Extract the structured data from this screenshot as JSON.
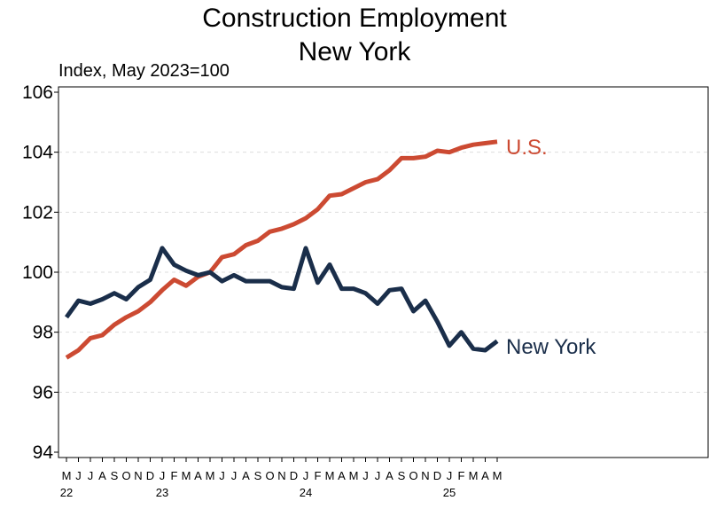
{
  "chart_data": {
    "type": "line",
    "title": "Construction Employment",
    "subtitle": "New York",
    "ylabel": "Index, May 2023=100",
    "ylim": [
      94,
      106
    ],
    "yticks": [
      94,
      96,
      98,
      100,
      102,
      104,
      106
    ],
    "grid": true,
    "x": [
      "2022-05",
      "2022-06",
      "2022-07",
      "2022-08",
      "2022-09",
      "2022-10",
      "2022-11",
      "2022-12",
      "2023-01",
      "2023-02",
      "2023-03",
      "2023-04",
      "2023-05",
      "2023-06",
      "2023-07",
      "2023-08",
      "2023-09",
      "2023-10",
      "2023-11",
      "2023-12",
      "2024-01",
      "2024-02",
      "2024-03",
      "2024-04",
      "2024-05",
      "2024-06",
      "2024-07",
      "2024-08",
      "2024-09",
      "2024-10",
      "2024-11",
      "2024-12",
      "2025-01",
      "2025-02",
      "2025-03",
      "2025-04",
      "2025-05"
    ],
    "month_labels": [
      "M",
      "J",
      "J",
      "A",
      "S",
      "O",
      "N",
      "D",
      "J",
      "F",
      "M",
      "A",
      "M",
      "J",
      "J",
      "A",
      "S",
      "O",
      "N",
      "D",
      "J",
      "F",
      "M",
      "A",
      "M",
      "J",
      "J",
      "A",
      "S",
      "O",
      "N",
      "D",
      "J",
      "F",
      "M",
      "A",
      "M"
    ],
    "year_labels": [
      {
        "index": 0,
        "label": "22"
      },
      {
        "index": 8,
        "label": "23"
      },
      {
        "index": 20,
        "label": "24"
      },
      {
        "index": 32,
        "label": "25"
      }
    ],
    "series": [
      {
        "name": "U.S.",
        "color": "#cc4a32",
        "values": [
          97.15,
          97.4,
          97.8,
          97.9,
          98.25,
          98.5,
          98.7,
          99.0,
          99.4,
          99.75,
          99.55,
          99.85,
          100.0,
          100.5,
          100.6,
          100.9,
          101.05,
          101.35,
          101.45,
          101.6,
          101.8,
          102.1,
          102.55,
          102.6,
          102.8,
          103.0,
          103.1,
          103.4,
          103.8,
          103.8,
          103.85,
          104.05,
          104.0,
          104.15,
          104.25,
          104.3,
          104.35
        ]
      },
      {
        "name": "New York",
        "color": "#1a2e4a",
        "values": [
          98.5,
          99.05,
          98.95,
          99.1,
          99.3,
          99.1,
          99.5,
          99.75,
          100.8,
          100.25,
          100.05,
          99.9,
          100.0,
          99.7,
          99.9,
          99.7,
          99.7,
          99.7,
          99.5,
          99.45,
          100.8,
          99.65,
          100.25,
          99.45,
          99.45,
          99.3,
          98.95,
          99.4,
          99.45,
          98.7,
          99.05,
          98.35,
          97.55,
          98.0,
          97.45,
          97.4,
          97.7
        ]
      }
    ]
  }
}
